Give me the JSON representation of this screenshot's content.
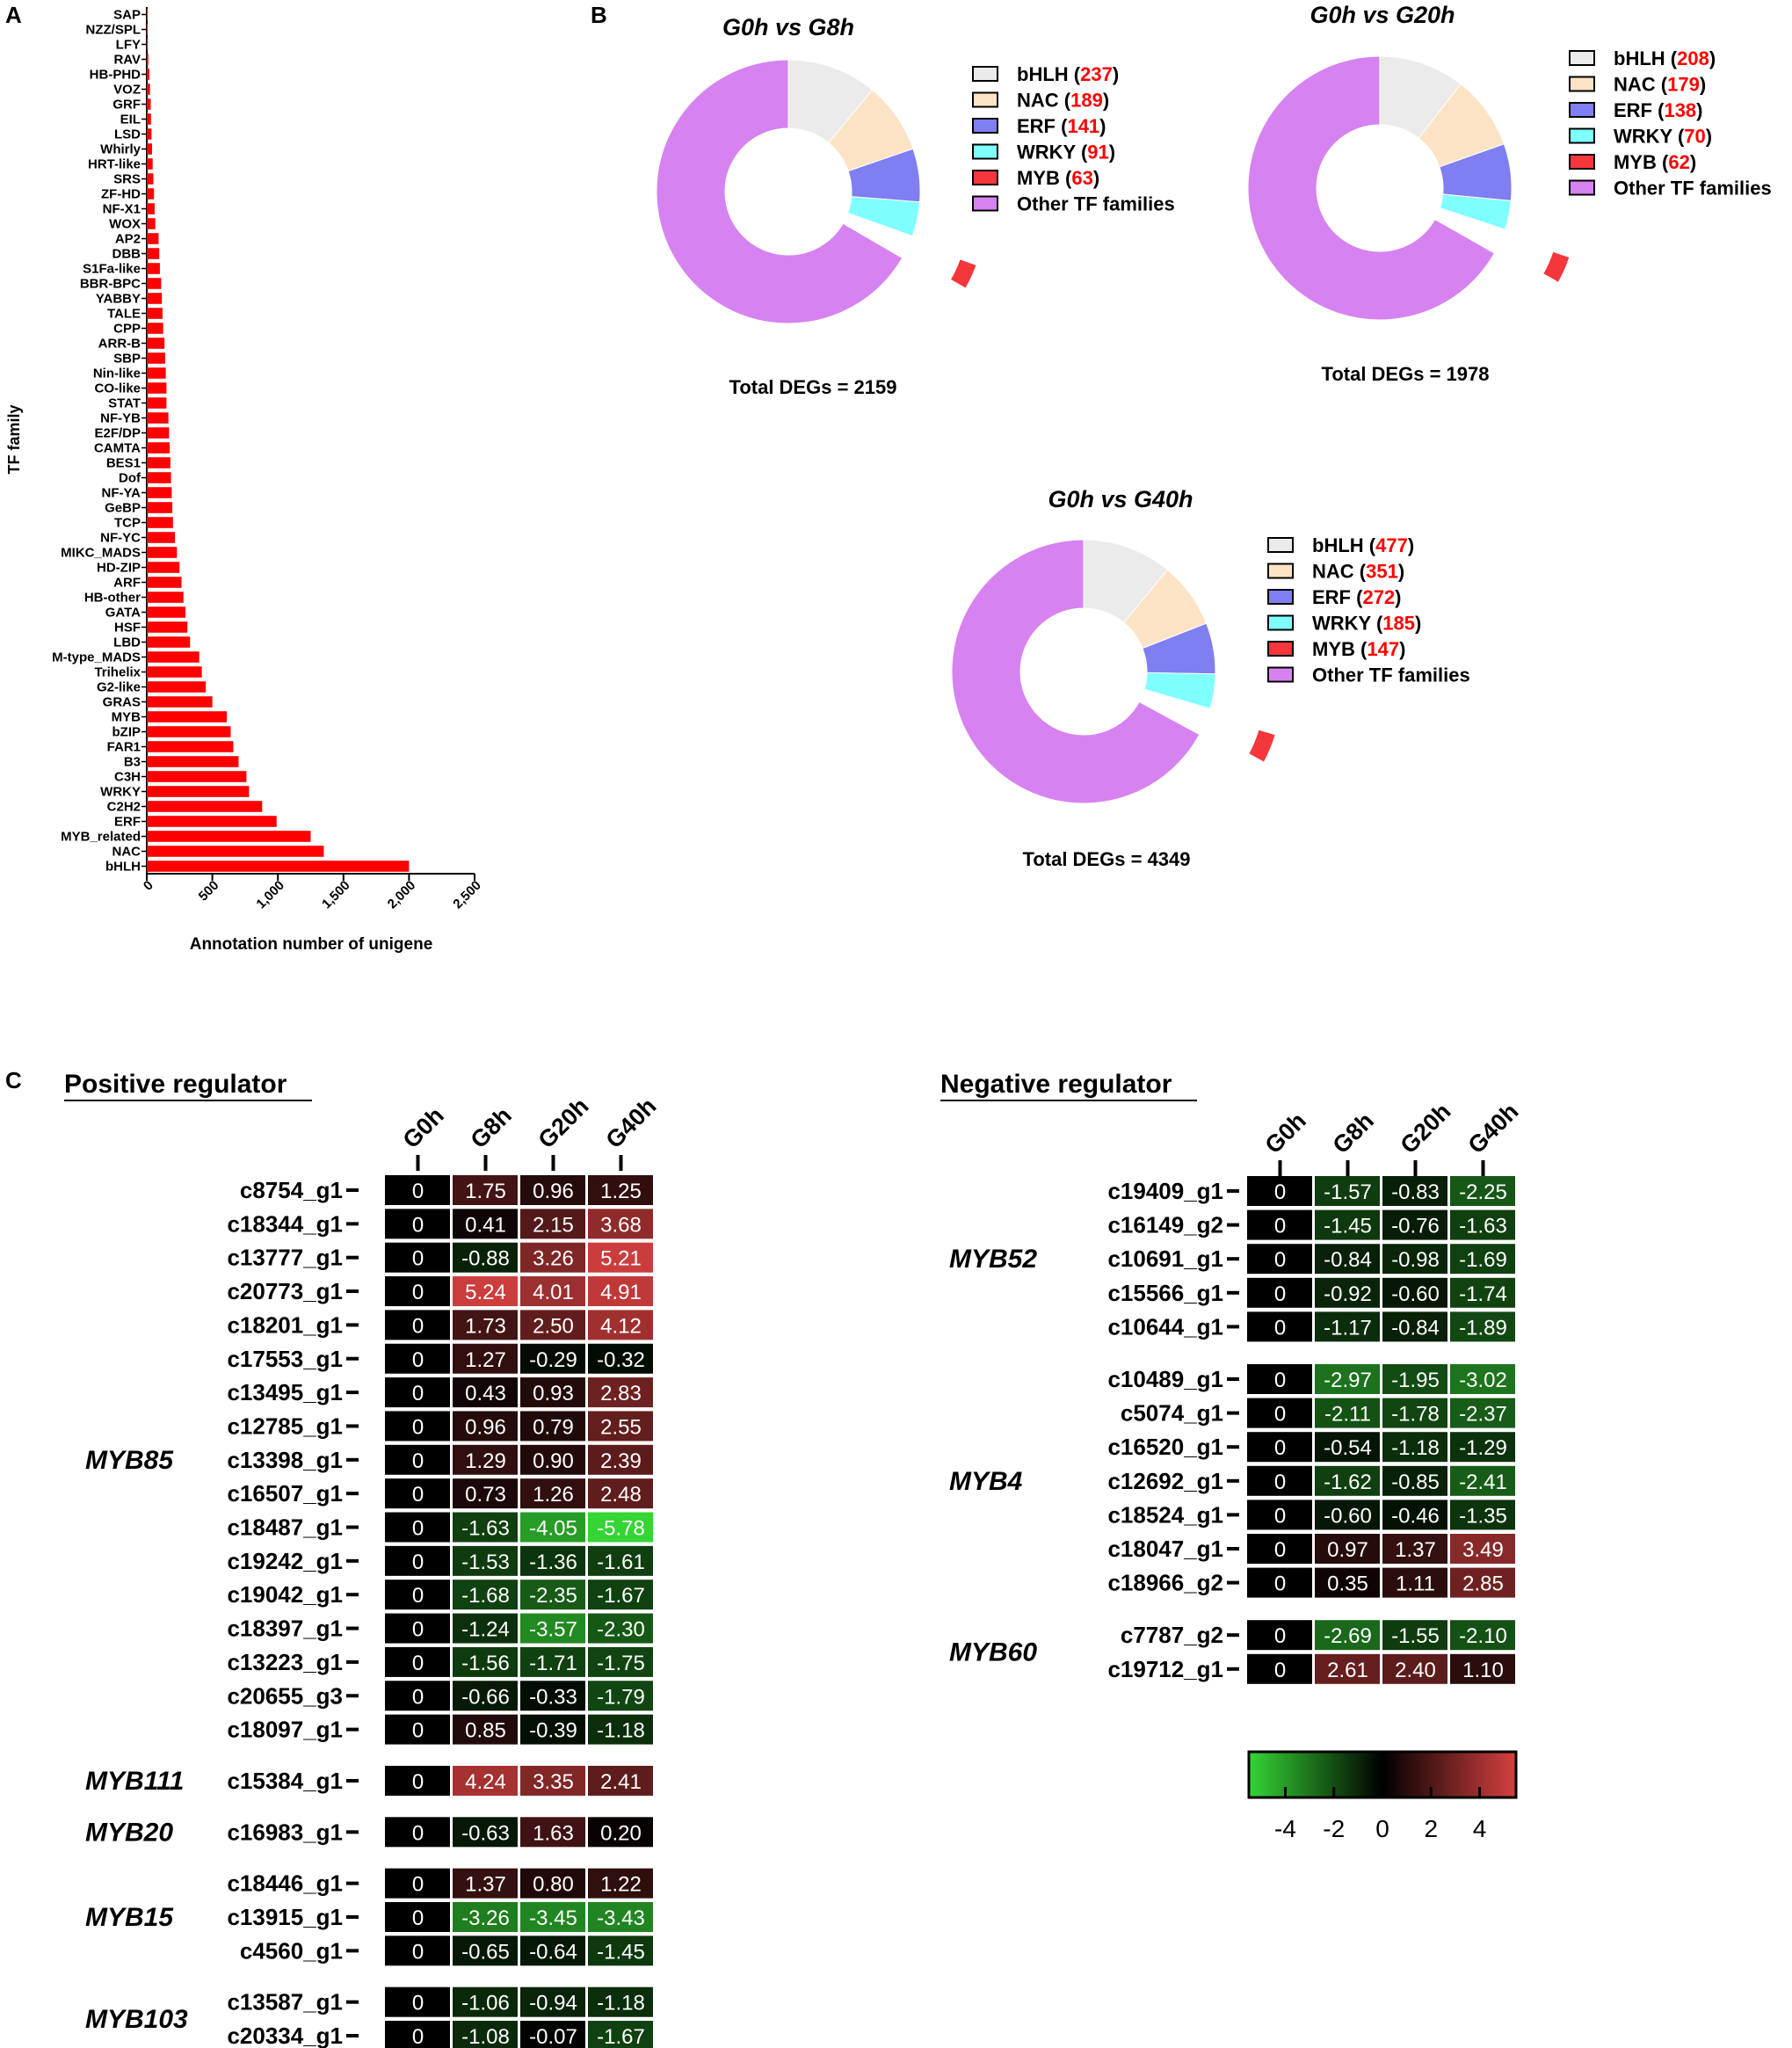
{
  "panel_labels": {
    "a": "A",
    "b": "B",
    "c": "C"
  },
  "chart_data": [
    {
      "type": "bar",
      "orientation": "horizontal",
      "ylabel": "TF family",
      "xlabel": "Annotation number of unigene",
      "xlim": [
        0,
        2500
      ],
      "xticks": [
        "0",
        "500",
        "1,000",
        "1,500",
        "2,000",
        "2,500"
      ],
      "xtick_values": [
        0,
        500,
        1000,
        1500,
        2000,
        2500
      ],
      "color": "#ff0000",
      "categories": [
        "SAP",
        "NZZ/SPL",
        "LFY",
        "RAV",
        "HB-PHD",
        "VOZ",
        "GRF",
        "EIL",
        "LSD",
        "Whirly",
        "HRT-like",
        "SRS",
        "ZF-HD",
        "NF-X1",
        "WOX",
        "AP2",
        "DBB",
        "S1Fa-like",
        "BBR-BPC",
        "YABBY",
        "TALE",
        "CPP",
        "ARR-B",
        "SBP",
        "Nin-like",
        "CO-like",
        "STAT",
        "NF-YB",
        "E2F/DP",
        "CAMTA",
        "BES1",
        "Dof",
        "NF-YA",
        "GeBP",
        "TCP",
        "NF-YC",
        "MIKC_MADS",
        "HD-ZIP",
        "ARF",
        "HB-other",
        "GATA",
        "HSF",
        "LBD",
        "M-type_MADS",
        "Trihelix",
        "G2-like",
        "GRAS",
        "MYB",
        "bZIP",
        "FAR1",
        "B3",
        "C3H",
        "WRKY",
        "C2H2",
        "ERF",
        "MYB_related",
        "NAC",
        "bHLH"
      ],
      "values": [
        3,
        5,
        8,
        12,
        20,
        25,
        30,
        32,
        36,
        40,
        45,
        50,
        55,
        60,
        65,
        90,
        95,
        100,
        110,
        115,
        120,
        125,
        135,
        140,
        145,
        150,
        150,
        165,
        170,
        175,
        180,
        185,
        190,
        195,
        200,
        215,
        230,
        250,
        265,
        280,
        295,
        310,
        330,
        400,
        420,
        450,
        500,
        610,
        640,
        660,
        700,
        760,
        780,
        880,
        990,
        1250,
        1350,
        2000
      ]
    },
    {
      "type": "pie",
      "title": "G0h vs G8h",
      "footer": "Total DEGs = 2159",
      "donut": true,
      "slices": [
        {
          "label": "bHLH",
          "value": 237,
          "color": "#ebebeb"
        },
        {
          "label": "NAC",
          "value": 189,
          "color": "#fde3c5"
        },
        {
          "label": "ERF",
          "value": 141,
          "color": "#7f7ff2"
        },
        {
          "label": "WRKY",
          "value": 91,
          "color": "#80ffff"
        },
        {
          "label": "MYB",
          "value": 63,
          "color": "#f5373c",
          "exploded": true
        },
        {
          "label": "Other TF families",
          "value": 1438,
          "color": "#d782f1"
        }
      ],
      "value_label_color": "#ff0000"
    },
    {
      "type": "pie",
      "title": "G0h vs G20h",
      "footer": "Total DEGs = 1978",
      "donut": true,
      "slices": [
        {
          "label": "bHLH",
          "value": 208,
          "color": "#ebebeb"
        },
        {
          "label": "NAC",
          "value": 179,
          "color": "#fde3c5"
        },
        {
          "label": "ERF",
          "value": 138,
          "color": "#7f7ff2"
        },
        {
          "label": "WRKY",
          "value": 70,
          "color": "#80ffff"
        },
        {
          "label": "MYB",
          "value": 62,
          "color": "#f5373c",
          "exploded": true
        },
        {
          "label": "Other TF families",
          "value": 1321,
          "color": "#d782f1"
        }
      ],
      "value_label_color": "#ff0000"
    },
    {
      "type": "pie",
      "title": "G0h vs G40h",
      "footer": "Total DEGs = 4349",
      "donut": true,
      "slices": [
        {
          "label": "bHLH",
          "value": 477,
          "color": "#ebebeb"
        },
        {
          "label": "NAC",
          "value": 351,
          "color": "#fde3c5"
        },
        {
          "label": "ERF",
          "value": 272,
          "color": "#7f7ff2"
        },
        {
          "label": "WRKY",
          "value": 185,
          "color": "#80ffff"
        },
        {
          "label": "MYB",
          "value": 147,
          "color": "#f5373c",
          "exploded": true
        },
        {
          "label": "Other TF families",
          "value": 2917,
          "color": "#d782f1"
        }
      ],
      "value_label_color": "#ff0000"
    },
    {
      "type": "heatmap",
      "title": "Positive regulator",
      "columns": [
        "G0h",
        "G8h",
        "G20h",
        "G40h"
      ],
      "groups": [
        {
          "name": "MYB85",
          "rows": [
            {
              "gene": "c8754_g1",
              "values": [
                "0",
                "1.75",
                "0.96",
                "1.25"
              ]
            },
            {
              "gene": "c18344_g1",
              "values": [
                "0",
                "0.41",
                "2.15",
                "3.68"
              ]
            },
            {
              "gene": "c13777_g1",
              "values": [
                "0",
                "-0.88",
                "3.26",
                "5.21"
              ]
            },
            {
              "gene": "c20773_g1",
              "values": [
                "0",
                "5.24",
                "4.01",
                "4.91"
              ]
            },
            {
              "gene": "c18201_g1",
              "values": [
                "0",
                "1.73",
                "2.50",
                "4.12"
              ]
            },
            {
              "gene": "c17553_g1",
              "values": [
                "0",
                "1.27",
                "-0.29",
                "-0.32"
              ]
            },
            {
              "gene": "c13495_g1",
              "values": [
                "0",
                "0.43",
                "0.93",
                "2.83"
              ]
            },
            {
              "gene": "c12785_g1",
              "values": [
                "0",
                "0.96",
                "0.79",
                "2.55"
              ]
            },
            {
              "gene": "c13398_g1",
              "values": [
                "0",
                "1.29",
                "0.90",
                "2.39"
              ]
            },
            {
              "gene": "c16507_g1",
              "values": [
                "0",
                "0.73",
                "1.26",
                "2.48"
              ]
            },
            {
              "gene": "c18487_g1",
              "values": [
                "0",
                "-1.63",
                "-4.05",
                "-5.78"
              ]
            },
            {
              "gene": "c19242_g1",
              "values": [
                "0",
                "-1.53",
                "-1.36",
                "-1.61"
              ]
            },
            {
              "gene": "c19042_g1",
              "values": [
                "0",
                "-1.68",
                "-2.35",
                "-1.67"
              ]
            },
            {
              "gene": "c18397_g1",
              "values": [
                "0",
                "-1.24",
                "-3.57",
                "-2.30"
              ]
            },
            {
              "gene": "c13223_g1",
              "values": [
                "0",
                "-1.56",
                "-1.71",
                "-1.75"
              ]
            },
            {
              "gene": "c20655_g3",
              "values": [
                "0",
                "-0.66",
                "-0.33",
                "-1.79"
              ]
            },
            {
              "gene": "c18097_g1",
              "values": [
                "0",
                "0.85",
                "-0.39",
                "-1.18"
              ]
            }
          ]
        },
        {
          "name": "MYB111",
          "rows": [
            {
              "gene": "c15384_g1",
              "values": [
                "0",
                "4.24",
                "3.35",
                "2.41"
              ]
            }
          ]
        },
        {
          "name": "MYB20",
          "rows": [
            {
              "gene": "c16983_g1",
              "values": [
                "0",
                "-0.63",
                "1.63",
                "0.20"
              ]
            }
          ]
        },
        {
          "name": "MYB15",
          "rows": [
            {
              "gene": "c18446_g1",
              "values": [
                "0",
                "1.37",
                "0.80",
                "1.22"
              ]
            },
            {
              "gene": "c13915_g1",
              "values": [
                "0",
                "-3.26",
                "-3.45",
                "-3.43"
              ]
            },
            {
              "gene": "c4560_g1",
              "values": [
                "0",
                "-0.65",
                "-0.64",
                "-1.45"
              ]
            }
          ]
        },
        {
          "name": "MYB103",
          "rows": [
            {
              "gene": "c13587_g1",
              "values": [
                "0",
                "-1.06",
                "-0.94",
                "-1.18"
              ]
            },
            {
              "gene": "c20334_g1",
              "values": [
                "0",
                "-1.08",
                "-0.07",
                "-1.67"
              ]
            }
          ]
        }
      ]
    },
    {
      "type": "heatmap",
      "title": "Negative regulator",
      "columns": [
        "G0h",
        "G8h",
        "G20h",
        "G40h"
      ],
      "groups": [
        {
          "name": "MYB52",
          "rows": [
            {
              "gene": "c19409_g1",
              "values": [
                "0",
                "-1.57",
                "-0.83",
                "-2.25"
              ]
            },
            {
              "gene": "c16149_g2",
              "values": [
                "0",
                "-1.45",
                "-0.76",
                "-1.63"
              ]
            },
            {
              "gene": "c10691_g1",
              "values": [
                "0",
                "-0.84",
                "-0.98",
                "-1.69"
              ]
            },
            {
              "gene": "c15566_g1",
              "values": [
                "0",
                "-0.92",
                "-0.60",
                "-1.74"
              ]
            },
            {
              "gene": "c10644_g1",
              "values": [
                "0",
                "-1.17",
                "-0.84",
                "-1.89"
              ]
            }
          ]
        },
        {
          "name": "MYB4",
          "rows": [
            {
              "gene": "c10489_g1",
              "values": [
                "0",
                "-2.97",
                "-1.95",
                "-3.02"
              ]
            },
            {
              "gene": "c5074_g1",
              "values": [
                "0",
                "-2.11",
                "-1.78",
                "-2.37"
              ]
            },
            {
              "gene": "c16520_g1",
              "values": [
                "0",
                "-0.54",
                "-1.18",
                "-1.29"
              ]
            },
            {
              "gene": "c12692_g1",
              "values": [
                "0",
                "-1.62",
                "-0.85",
                "-2.41"
              ]
            },
            {
              "gene": "c18524_g1",
              "values": [
                "0",
                "-0.60",
                "-0.46",
                "-1.35"
              ]
            },
            {
              "gene": "c18047_g1",
              "values": [
                "0",
                "0.97",
                "1.37",
                "3.49"
              ]
            },
            {
              "gene": "c18966_g2",
              "values": [
                "0",
                "0.35",
                "1.11",
                "2.85"
              ]
            }
          ]
        },
        {
          "name": "MYB60",
          "rows": [
            {
              "gene": "c7787_g2",
              "values": [
                "0",
                "-2.69",
                "-1.55",
                "-2.10"
              ]
            },
            {
              "gene": "c19712_g1",
              "values": [
                "0",
                "2.61",
                "2.40",
                "1.10"
              ]
            }
          ]
        }
      ]
    },
    {
      "type": "colorbar",
      "range": [
        -5.5,
        5.5
      ],
      "tick_values": [
        -4,
        -2,
        0,
        2,
        4
      ],
      "tick_labels": [
        "-4",
        "-2",
        "0",
        "2",
        "4"
      ],
      "colors": {
        "low": "#35d535",
        "mid": "#000000",
        "high": "#d64040"
      }
    }
  ]
}
